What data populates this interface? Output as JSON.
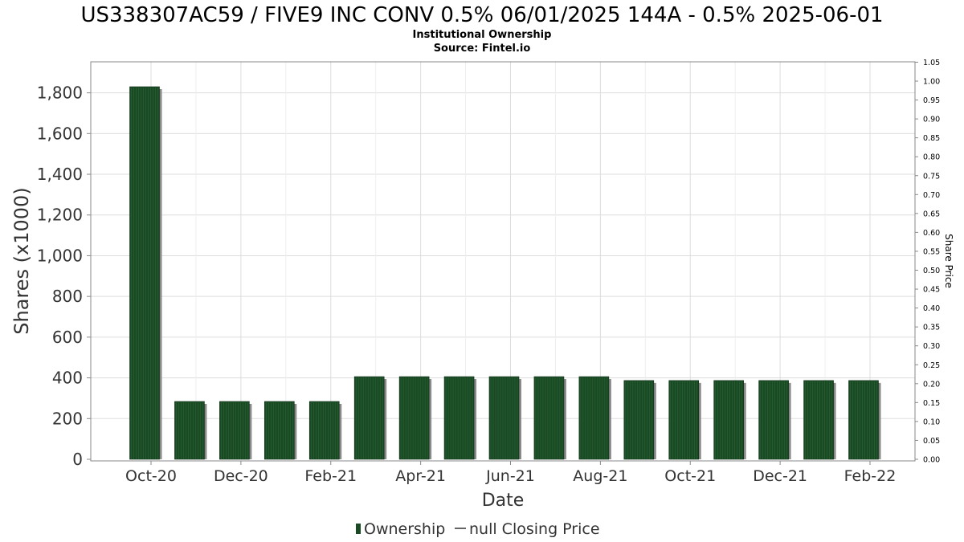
{
  "title": "US338307AC59 / FIVE9 INC CONV 0.5% 06/01/2025 144A - 0.5% 2025-06-01",
  "subtitle": "Institutional Ownership",
  "source": "Source: Fintel.io",
  "colors": {
    "bar": "#1a4a24",
    "bar_shadow": "#8a8a8a",
    "grid": "#dddddd",
    "frame": "#888888",
    "axis_text": "#333333"
  },
  "chart_data": {
    "type": "bar",
    "xlabel": "Date",
    "ylabel": "Shares (x1000)",
    "y2label": "Share Price",
    "ylim": [
      0,
      1930
    ],
    "y2lim": [
      0,
      1.05
    ],
    "yticks": [
      0,
      200,
      400,
      600,
      800,
      1000,
      1200,
      1400,
      1600,
      1800
    ],
    "ytick_labels": [
      "0",
      "200",
      "400",
      "600",
      "800",
      "1,000",
      "1,200",
      "1,400",
      "1,600",
      "1,800"
    ],
    "y2ticks": [
      "0.00",
      "0.05",
      "0.10",
      "0.15",
      "0.20",
      "0.25",
      "0.30",
      "0.35",
      "0.40",
      "0.45",
      "0.50",
      "0.55",
      "0.60",
      "0.65",
      "0.70",
      "0.75",
      "0.80",
      "0.85",
      "0.90",
      "0.95",
      "1.00",
      "1.05"
    ],
    "xtick_labels": [
      "Oct-20",
      "Dec-20",
      "Feb-21",
      "Apr-21",
      "Jun-21",
      "Aug-21",
      "Oct-21",
      "Dec-21",
      "Feb-22"
    ],
    "series": [
      {
        "name": "Ownership",
        "values": [
          1830,
          284,
          284,
          284,
          284,
          406,
          406,
          406,
          406,
          406,
          406,
          387,
          387,
          387,
          387,
          387,
          387
        ]
      }
    ],
    "legend": [
      "Ownership",
      "null Closing Price"
    ],
    "legend_position": "bottom-center",
    "grid": true
  }
}
